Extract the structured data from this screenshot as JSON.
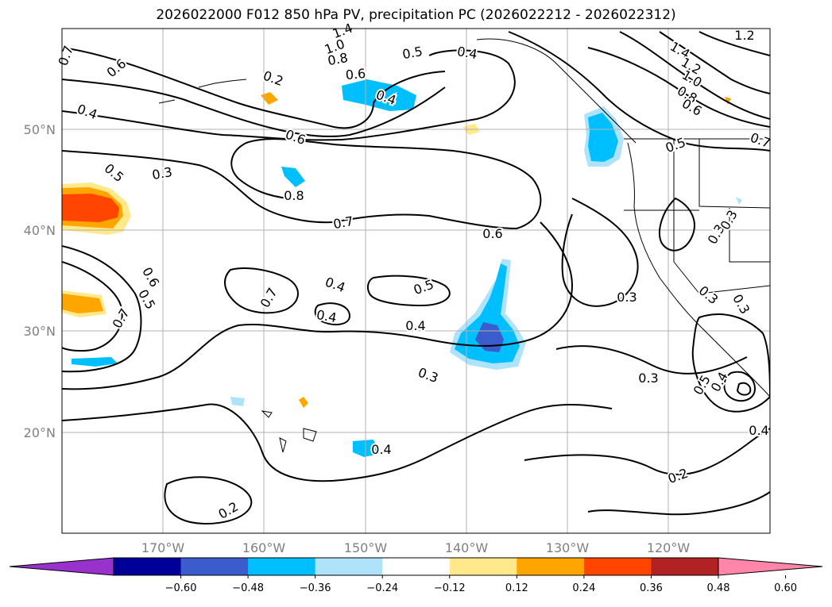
{
  "title": "2026022000 F012 850 hPa PV, precipitation PC (2026022212 - 2026022312)",
  "lat_labels": [
    "50°N",
    "40°N",
    "30°N",
    "20°N"
  ],
  "lon_labels": [
    "170°W",
    "160°W",
    "150°W",
    "140°W",
    "130°W",
    "120°W"
  ],
  "contour_labels": [
    "0.7",
    "0.6",
    "1.4",
    "1.0",
    "0.8",
    "0.6",
    "0.2",
    "0.5",
    "0.4",
    "0.4",
    "0.4",
    "0.6",
    "0.3",
    "0.5",
    "0.8",
    "0.7",
    "0.4",
    "0.5",
    "0.7",
    "0.6",
    "0.5",
    "0.4",
    "0.7",
    "0.4",
    "0.3",
    "0.3",
    "0.3",
    "0.2",
    "0.2",
    "1.2",
    "1.4",
    "1.2",
    "1.0",
    "0.8",
    "0.6",
    "0.5",
    "0.7",
    "0.3",
    "0.3",
    "0.4",
    "0.3",
    "0.3",
    "0.5",
    "0.4",
    "0.4",
    "0.6"
  ],
  "colorbar": {
    "colors": [
      "#9932cc",
      "#000099",
      "#3a5ccc",
      "#00bfff",
      "#aee3fb",
      "#ffffff",
      "#ffe98a",
      "#ffa500",
      "#ff4500",
      "#b22222",
      "#ff85a9"
    ],
    "under_color": "#9932cc",
    "over_color": "#ff85a9",
    "ticks": [
      "−0.60",
      "−0.48",
      "−0.36",
      "−0.24",
      "−0.12",
      "0.12",
      "0.24",
      "0.36",
      "0.48",
      "0.60"
    ]
  },
  "legend_colors": {
    "coast": "#000000",
    "grid": "#b0b0b0",
    "contour": "#000000"
  }
}
